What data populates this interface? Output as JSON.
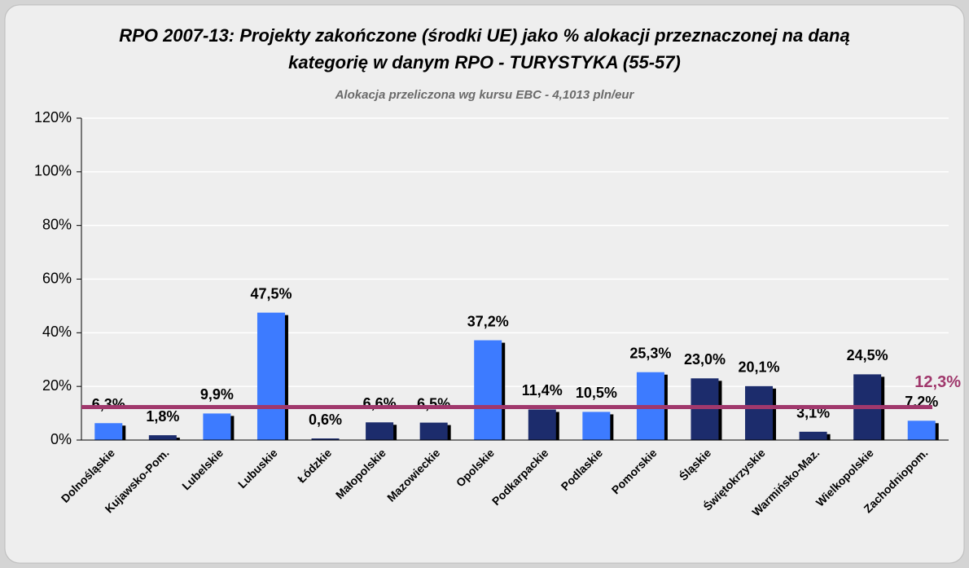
{
  "chart_data": {
    "type": "bar",
    "title": [
      "RPO 2007-13: Projekty zakończone (środki UE) jako % alokacji przeznaczonej na daną",
      "kategorię w danym RPO - TURYSTYKA (55-57)"
    ],
    "subtitle": "Alokacja przeliczona wg kursu EBC - 4,1013 pln/eur",
    "categories": [
      "Dolnośląskie",
      "Kujawsko-Pom.",
      "Lubelskie",
      "Lubuskie",
      "Łódzkie",
      "Małopolskie",
      "Mazowieckie",
      "Opolskie",
      "Podkarpackie",
      "Podlaskie",
      "Pomorskie",
      "Śląskie",
      "Świętokrzyskie",
      "Warmińsko-Maz.",
      "Wielkopolskie",
      "Zachodniopom."
    ],
    "values": [
      6.3,
      1.8,
      9.9,
      47.5,
      0.6,
      6.6,
      6.5,
      37.2,
      11.4,
      10.5,
      25.3,
      23.0,
      20.1,
      3.1,
      24.5,
      7.2
    ],
    "value_labels": [
      "6,3%",
      "1,8%",
      "9,9%",
      "47,5%",
      "0,6%",
      "6,6%",
      "6,5%",
      "37,2%",
      "11,4%",
      "10,5%",
      "25,3%",
      "23,0%",
      "20,1%",
      "3,1%",
      "24,5%",
      "7,2%"
    ],
    "colors": [
      "#3d7bff",
      "#1c2c6c",
      "#3d7bff",
      "#3d7bff",
      "#1c2c6c",
      "#1c2c6c",
      "#1c2c6c",
      "#3d7bff",
      "#1c2c6c",
      "#3d7bff",
      "#3d7bff",
      "#1c2c6c",
      "#1c2c6c",
      "#1c2c6c",
      "#1c2c6c",
      "#3d7bff"
    ],
    "average": 12.3,
    "average_label": "12,3%",
    "average_color": "#a0386c",
    "ylim": [
      0,
      120
    ],
    "yticks": [
      {
        "value": 0,
        "label": "0%"
      },
      {
        "value": 20,
        "label": "20%"
      },
      {
        "value": 40,
        "label": "40%"
      },
      {
        "value": 60,
        "label": "60%"
      },
      {
        "value": 80,
        "label": "80%"
      },
      {
        "value": 100,
        "label": "100%"
      },
      {
        "value": 120,
        "label": "120%"
      }
    ],
    "grid": true
  }
}
